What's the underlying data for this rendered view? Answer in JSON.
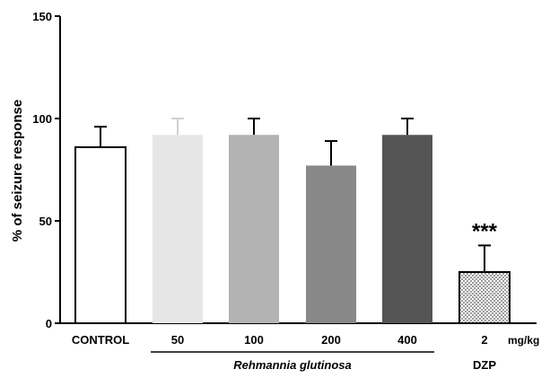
{
  "chart_data": {
    "type": "bar",
    "ylabel": "% of seizure response",
    "ylim": [
      0,
      150
    ],
    "yticks": [
      "0",
      "50",
      "100",
      "150"
    ],
    "grid": false,
    "categories": [
      "CONTROL",
      "50",
      "100",
      "200",
      "400",
      "2"
    ],
    "values": [
      86,
      92,
      92,
      77,
      92,
      25
    ],
    "errors": [
      10,
      8,
      8,
      12,
      8,
      13
    ],
    "bar_colors": [
      "#ffffff",
      "#e6e6e6",
      "#b3b3b3",
      "#888888",
      "#555555",
      "pattern-dots"
    ],
    "dose_unit": "mg/kg",
    "group_labels": [
      {
        "text": "Rehmannia glutinosa",
        "from": 1,
        "to": 4,
        "italic": true
      },
      {
        "text": "DZP",
        "from": 5,
        "to": 5,
        "italic": false
      }
    ],
    "annotations": [
      {
        "text": "***",
        "category_index": 5
      }
    ]
  }
}
